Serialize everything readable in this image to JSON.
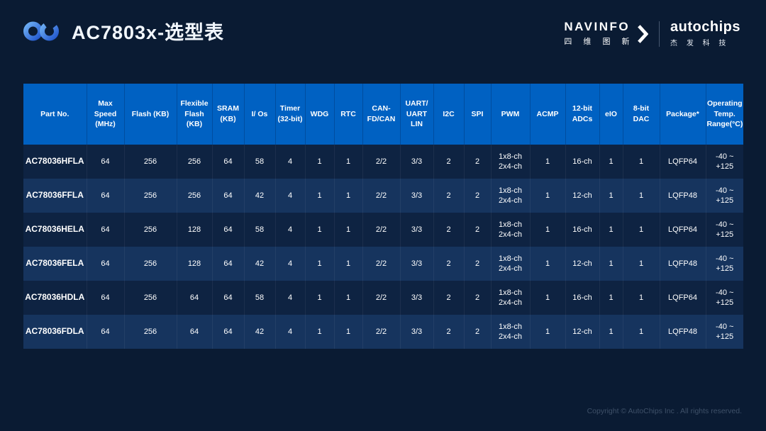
{
  "page": {
    "title": "AC7803x-选型表",
    "footer": "Copyright © AutoChips Inc . All rights reserved."
  },
  "brand": {
    "navinfo": {
      "name": "NAVINFO",
      "cn": "四 维 图 新"
    },
    "autochips": {
      "name": "autochips",
      "cn": "杰 发 科 技"
    }
  },
  "colors": {
    "background": "#0A1B33",
    "header_blue": "#0061C2",
    "row_dark": "#0E2342",
    "row_light": "#16345E",
    "footer_text": "#3E5068",
    "logo_gradient_start": "#63A8F0",
    "logo_gradient_end": "#2257CE"
  },
  "table": {
    "columns": [
      "Part No.",
      "Max\nSpeed\n(MHz)",
      "Flash (KB)",
      "Flexible\nFlash\n(KB)",
      "SRAM\n(KB)",
      "I/ Os",
      "Timer\n(32-bit)",
      "WDG",
      "RTC",
      "CAN-\nFD/CAN",
      "UART/\nUART\nLIN",
      "I2C",
      "SPI",
      "PWM",
      "ACMP",
      "12-bit\nADCs",
      "eIO",
      "8-bit\nDAC",
      "Package*",
      "Operating\nTemp.\nRange(°C)"
    ],
    "rows": [
      [
        "AC78036HFLA",
        "64",
        "256",
        "256",
        "64",
        "58",
        "4",
        "1",
        "1",
        "2/2",
        "3/3",
        "2",
        "2",
        "1x8-ch\n2x4-ch",
        "1",
        "16-ch",
        "1",
        "1",
        "LQFP64",
        "-40 ~ +125"
      ],
      [
        "AC78036FFLA",
        "64",
        "256",
        "256",
        "64",
        "42",
        "4",
        "1",
        "1",
        "2/2",
        "3/3",
        "2",
        "2",
        "1x8-ch\n2x4-ch",
        "1",
        "12-ch",
        "1",
        "1",
        "LQFP48",
        "-40 ~ +125"
      ],
      [
        "AC78036HELA",
        "64",
        "256",
        "128",
        "64",
        "58",
        "4",
        "1",
        "1",
        "2/2",
        "3/3",
        "2",
        "2",
        "1x8-ch\n2x4-ch",
        "1",
        "16-ch",
        "1",
        "1",
        "LQFP64",
        "-40 ~ +125"
      ],
      [
        "AC78036FELA",
        "64",
        "256",
        "128",
        "64",
        "42",
        "4",
        "1",
        "1",
        "2/2",
        "3/3",
        "2",
        "2",
        "1x8-ch\n2x4-ch",
        "1",
        "12-ch",
        "1",
        "1",
        "LQFP48",
        "-40 ~ +125"
      ],
      [
        "AC78036HDLA",
        "64",
        "256",
        "64",
        "64",
        "58",
        "4",
        "1",
        "1",
        "2/2",
        "3/3",
        "2",
        "2",
        "1x8-ch\n2x4-ch",
        "1",
        "16-ch",
        "1",
        "1",
        "LQFP64",
        "-40 ~ +125"
      ],
      [
        "AC78036FDLA",
        "64",
        "256",
        "64",
        "64",
        "42",
        "4",
        "1",
        "1",
        "2/2",
        "3/3",
        "2",
        "2",
        "1x8-ch\n2x4-ch",
        "1",
        "12-ch",
        "1",
        "1",
        "LQFP48",
        "-40 ~ +125"
      ]
    ]
  }
}
